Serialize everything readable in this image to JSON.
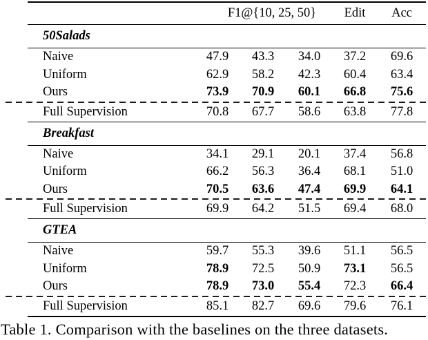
{
  "figure": {
    "header": {
      "f1": "F1@{10, 25, 50}",
      "edit": "Edit",
      "acc": "Acc"
    },
    "sections": [
      {
        "name": "50Salads",
        "rows": [
          {
            "label": "Naive",
            "values": [
              "47.9",
              "43.3",
              "34.0",
              "37.2",
              "69.6"
            ]
          },
          {
            "label": "Uniform",
            "values": [
              "62.9",
              "58.2",
              "42.3",
              "60.4",
              "63.4"
            ]
          },
          {
            "label": "Ours",
            "values": [
              "73.9",
              "70.9",
              "60.1",
              "66.8",
              "75.6"
            ]
          },
          {
            "label": "Full Supervision",
            "values": [
              "70.8",
              "67.7",
              "58.6",
              "63.8",
              "77.8"
            ]
          }
        ]
      },
      {
        "name": "Breakfast",
        "rows": [
          {
            "label": "Naive",
            "values": [
              "34.1",
              "29.1",
              "20.1",
              "37.4",
              "56.8"
            ]
          },
          {
            "label": "Uniform",
            "values": [
              "66.2",
              "56.3",
              "36.4",
              "68.1",
              "51.0"
            ]
          },
          {
            "label": "Ours",
            "values": [
              "70.5",
              "63.6",
              "47.4",
              "69.9",
              "64.1"
            ]
          },
          {
            "label": "Full Supervision",
            "values": [
              "69.9",
              "64.2",
              "51.5",
              "69.4",
              "68.0"
            ]
          }
        ]
      },
      {
        "name": "GTEA",
        "rows": [
          {
            "label": "Naive",
            "values": [
              "59.7",
              "55.3",
              "39.6",
              "51.1",
              "56.5"
            ]
          },
          {
            "label": "Uniform",
            "values": [
              "78.9",
              "72.5",
              "50.9",
              "73.1",
              "56.5"
            ]
          },
          {
            "label": "Ours",
            "values": [
              "78.9",
              "73.0",
              "55.4",
              "72.3",
              "66.4"
            ]
          },
          {
            "label": "Full Supervision",
            "values": [
              "85.1",
              "82.7",
              "69.6",
              "79.6",
              "76.1"
            ]
          }
        ]
      }
    ],
    "caption": "Table 1. Comparison with the baselines on the three datasets."
  }
}
